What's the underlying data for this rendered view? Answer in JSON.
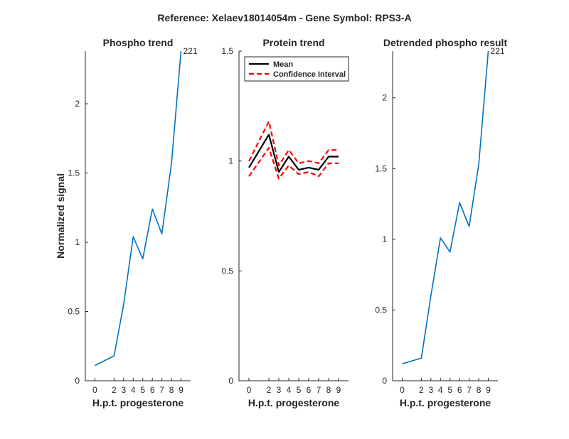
{
  "figure": {
    "suptitle": "Reference:  Xelaev18014054m - Gene Symbol:  RPS3-A"
  },
  "colors": {
    "phospho_line": "#0072BD",
    "mean_line": "#000000",
    "ci_line": "#FF0000",
    "axis": "#262626"
  },
  "chart_data": [
    {
      "type": "line",
      "title": "Phospho trend",
      "xlabel": "H.p.t. progesterone",
      "ylabel": "Normalized signal",
      "x": [
        0,
        2,
        3,
        4,
        5,
        6,
        7,
        8,
        9
      ],
      "xlim": [
        -1,
        10
      ],
      "ylim": [
        0,
        2.38
      ],
      "yticks": [
        0,
        0.5,
        1,
        1.5,
        2
      ],
      "ytick_labels": [
        "0",
        "0.5",
        "1",
        "1.5",
        "2"
      ],
      "series": [
        {
          "values": [
            0.11,
            0.18,
            0.55,
            1.04,
            0.88,
            1.24,
            1.06,
            1.57,
            2.38
          ]
        }
      ],
      "end_label": "221",
      "grid": false
    },
    {
      "type": "line",
      "title": "Protein trend",
      "xlabel": "H.p.t. progesterone",
      "ylabel": "",
      "x": [
        0,
        2,
        3,
        4,
        5,
        6,
        7,
        8,
        9
      ],
      "xlim": [
        -1,
        10
      ],
      "ylim": [
        0,
        1.5
      ],
      "yticks": [
        0,
        0.5,
        1,
        1.5
      ],
      "ytick_labels": [
        "0",
        "0.5",
        "1",
        "1.5"
      ],
      "series": [
        {
          "name": "Mean",
          "values": [
            0.97,
            1.12,
            0.95,
            1.02,
            0.96,
            0.97,
            0.96,
            1.02,
            1.02
          ]
        },
        {
          "name": "Confidence Interval",
          "values": [
            1.0,
            1.18,
            0.98,
            1.05,
            0.99,
            1.0,
            0.99,
            1.05,
            1.05
          ]
        },
        {
          "values": [
            0.93,
            1.06,
            0.92,
            0.98,
            0.94,
            0.95,
            0.93,
            0.99,
            0.99
          ]
        }
      ],
      "legend": {
        "position": "top-left",
        "entries": [
          "Mean",
          "Confidence Interval"
        ]
      },
      "grid": false
    },
    {
      "type": "line",
      "title": "Detrended phospho result",
      "xlabel": "H.p.t. progesterone",
      "ylabel": "",
      "x": [
        0,
        2,
        3,
        4,
        5,
        6,
        7,
        8,
        9
      ],
      "xlim": [
        -1,
        10
      ],
      "ylim": [
        0,
        2.33
      ],
      "yticks": [
        0,
        0.5,
        1,
        1.5,
        2
      ],
      "ytick_labels": [
        "0",
        "0.5",
        "1",
        "1.5",
        "2"
      ],
      "series": [
        {
          "values": [
            0.12,
            0.16,
            0.6,
            1.01,
            0.91,
            1.26,
            1.09,
            1.53,
            2.33
          ]
        }
      ],
      "end_label": "221",
      "grid": false
    }
  ]
}
